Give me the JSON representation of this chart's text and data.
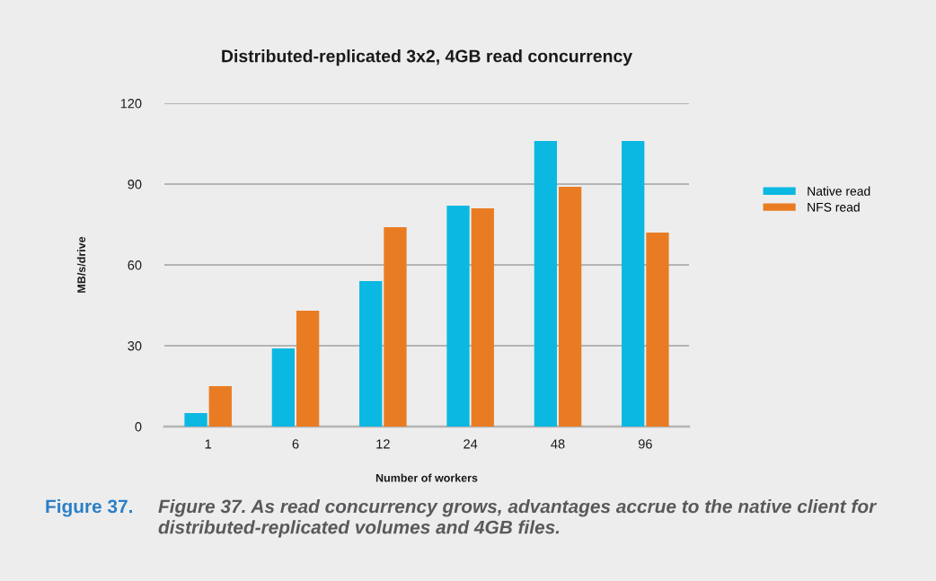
{
  "chart_data": {
    "type": "bar",
    "title": "Distributed-replicated 3x2, 4GB read concurrency",
    "xlabel": "Number of workers",
    "ylabel": "MB/s/drive",
    "categories": [
      "1",
      "6",
      "12",
      "24",
      "48",
      "96"
    ],
    "series": [
      {
        "name": "Native read",
        "color": "#0bb8e1",
        "values": [
          5,
          29,
          54,
          82,
          106,
          106
        ]
      },
      {
        "name": "NFS read",
        "color": "#e97c23",
        "values": [
          15,
          43,
          74,
          81,
          89,
          72
        ]
      }
    ],
    "ylim": [
      0,
      120
    ],
    "yticks": [
      0,
      30,
      60,
      90,
      120
    ],
    "grid": "y",
    "legend": "right",
    "annotations": [
      "Figure 37.",
      "Figure 37. As read concurrency grows, advantages accrue to the native client for distributed-replicated volumes and 4GB files."
    ]
  }
}
